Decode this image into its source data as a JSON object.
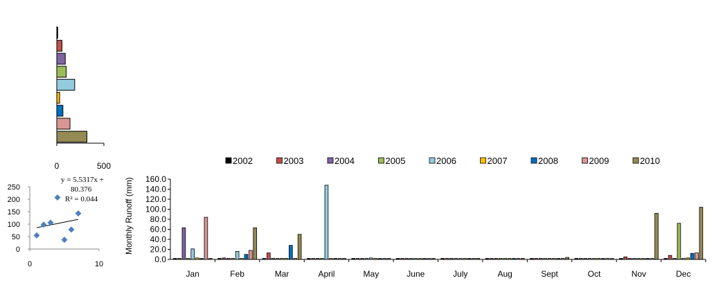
{
  "chart_data": [
    {
      "type": "bar",
      "orientation": "horizontal",
      "categories": [
        "2002",
        "2003",
        "2004",
        "2005",
        "2006",
        "2007",
        "2008",
        "2009",
        "2010"
      ],
      "values": [
        10,
        55,
        90,
        100,
        190,
        30,
        65,
        140,
        320
      ],
      "colors": [
        "#000000",
        "#c0504d",
        "#8064a2",
        "#9bbb59",
        "#93cddd",
        "#ffc000",
        "#0070c0",
        "#d99694",
        "#948a54"
      ],
      "xlim": [
        0,
        500
      ],
      "xticks": [
        "0",
        "500"
      ],
      "grid": false,
      "legend": "none"
    },
    {
      "type": "scatter",
      "points": [
        [
          1,
          55
        ],
        [
          2,
          98
        ],
        [
          3,
          106
        ],
        [
          4,
          207
        ],
        [
          5,
          37
        ],
        [
          6,
          78
        ],
        [
          7,
          143
        ]
      ],
      "trendline": {
        "slope": 5.5317,
        "intercept": 80.376
      },
      "equation_line1": "y = 5.5317x +",
      "equation_line2": "80.376",
      "r2_text": "R² = 0.044",
      "xlim": [
        0,
        10
      ],
      "ylim": [
        0,
        250
      ],
      "xticks": [
        "0",
        "10"
      ],
      "yticks": [
        "0",
        "50",
        "100",
        "150",
        "200",
        "250"
      ],
      "marker_color": "#4f81bd"
    },
    {
      "type": "bar",
      "categories": [
        "Jan",
        "Feb",
        "Mar",
        "April",
        "May",
        "June",
        "July",
        "Aug",
        "Sept",
        "Oct",
        "Nov",
        "Dec"
      ],
      "ylabel": "Monthly  Runoff (mm)",
      "ylim": [
        0,
        160
      ],
      "yticks": [
        "0.0",
        "20.0",
        "40.0",
        "60.0",
        "80.0",
        "100.0",
        "120.0",
        "140.0",
        "160.0"
      ],
      "legend": "top",
      "grid": false,
      "series": [
        {
          "name": "2002",
          "color": "#000000",
          "values": [
            2,
            2,
            2,
            2,
            2,
            2,
            2,
            2,
            2,
            2,
            2,
            2
          ]
        },
        {
          "name": "2003",
          "color": "#c0504d",
          "values": [
            2,
            3,
            13,
            2,
            2,
            2,
            2,
            2,
            2,
            2,
            5,
            8
          ]
        },
        {
          "name": "2004",
          "color": "#8064a2",
          "values": [
            63,
            2,
            2,
            2,
            2,
            2,
            2,
            2,
            2,
            2,
            2,
            2
          ]
        },
        {
          "name": "2005",
          "color": "#9bbb59",
          "values": [
            2,
            2,
            2,
            2,
            2,
            2,
            2,
            2,
            2,
            2,
            2,
            72
          ]
        },
        {
          "name": "2006",
          "color": "#93cddd",
          "values": [
            21,
            16,
            2,
            148,
            3,
            2,
            2,
            2,
            2,
            2,
            2,
            2
          ]
        },
        {
          "name": "2007",
          "color": "#ffc000",
          "values": [
            3,
            2,
            2,
            2,
            2,
            2,
            2,
            2,
            2,
            2,
            2,
            3
          ]
        },
        {
          "name": "2008",
          "color": "#0070c0",
          "values": [
            2,
            10,
            28,
            2,
            2,
            2,
            2,
            2,
            2,
            2,
            2,
            12
          ]
        },
        {
          "name": "2009",
          "color": "#d99694",
          "values": [
            84,
            18,
            2,
            2,
            2,
            2,
            2,
            2,
            2,
            2,
            2,
            13
          ]
        },
        {
          "name": "2010",
          "color": "#948a54",
          "values": [
            2,
            63,
            50,
            2,
            2,
            2,
            2,
            2,
            4,
            2,
            92,
            104
          ]
        }
      ]
    }
  ]
}
